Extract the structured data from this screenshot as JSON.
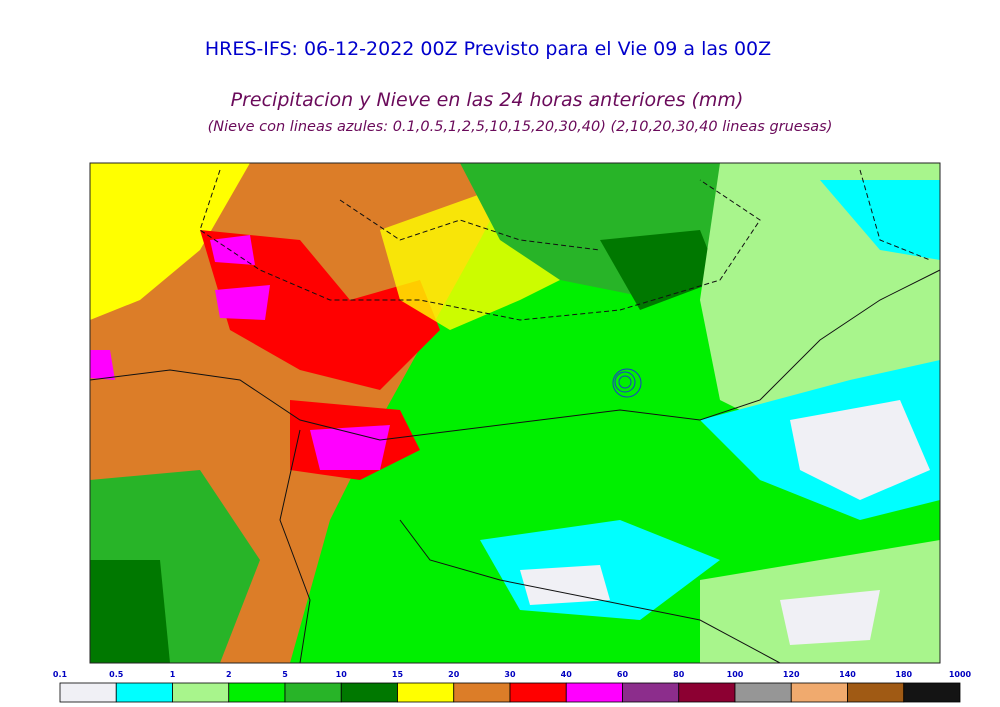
{
  "header": {
    "title": "HRES-IFS: 06-12-2022 00Z Previsto para el Vie 09 a las 00Z",
    "subtitle": "Precipitacion y Nieve en las 24 horas anteriores (mm)",
    "note": "(Nieve con lineas azules: 0.1,0.5,1,2,5,10,15,20,30,40)  (2,10,20,30,40 lineas gruesas)"
  },
  "colorbar": {
    "bounds": [
      0.1,
      0.5,
      1,
      2,
      5,
      10,
      15,
      20,
      30,
      40,
      60,
      80,
      100,
      120,
      140,
      180,
      1000
    ],
    "colors": [
      "#f0f0f5",
      "#00ffff",
      "#a8f58c",
      "#00f000",
      "#28b428",
      "#007800",
      "#ffff00",
      "#dc7d28",
      "#ff0000",
      "#ff00ff",
      "#8c2d8c",
      "#8c0032",
      "#969696",
      "#f0aa6e",
      "#a05a14",
      "#141414"
    ]
  }
}
